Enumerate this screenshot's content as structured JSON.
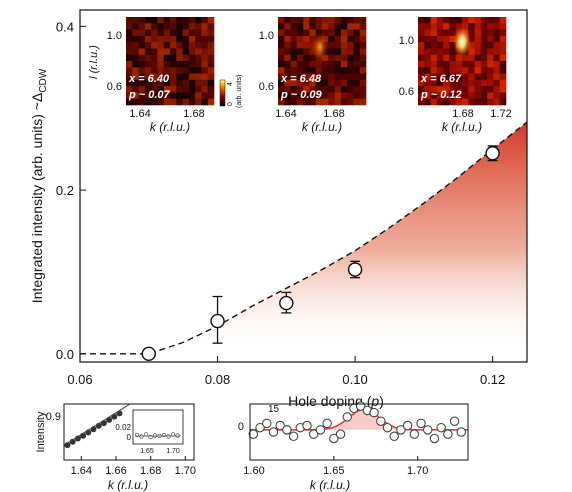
{
  "chart_data": [
    {
      "type": "scatter",
      "xlabel": "Hole doping (",
      "xlabel_var": "p",
      "xlabel_close": ")",
      "ylabel": "Integrated intensity (arb. units) ~Δ",
      "ylabel_sub": "CDW",
      "xlim": [
        0.06,
        0.125
      ],
      "ylim": [
        -0.01,
        0.42
      ],
      "x_ticks": [
        "0.06",
        "0.08",
        "0.10",
        "0.12"
      ],
      "x_tick_values": [
        0.06,
        0.08,
        0.1,
        0.12
      ],
      "y_ticks": [
        "0.0",
        "0.2",
        "0.4"
      ],
      "y_tick_values": [
        0.0,
        0.2,
        0.4
      ],
      "series": [
        {
          "marker": "open-circle",
          "x": [
            0.07,
            0.08,
            0.09,
            0.1,
            0.12
          ],
          "y": [
            0.0,
            0.04,
            0.062,
            0.103,
            0.245
          ],
          "err_low": [
            0.0,
            0.027,
            0.012,
            0.01,
            0.009
          ],
          "err_high": [
            0.0,
            0.03,
            0.013,
            0.01,
            0.009
          ]
        }
      ],
      "fit_curve": {
        "style": "dashed",
        "color": "#111111",
        "x": [
          0.06,
          0.065,
          0.07,
          0.075,
          0.08,
          0.085,
          0.09,
          0.095,
          0.1,
          0.105,
          0.11,
          0.115,
          0.12,
          0.125
        ],
        "y": [
          0.0,
          0.0,
          0.0,
          0.014,
          0.034,
          0.058,
          0.08,
          0.102,
          0.126,
          0.154,
          0.184,
          0.216,
          0.25,
          0.283
        ]
      },
      "fill_color": "#d23a26",
      "grid": false
    },
    {
      "type": "heatmap",
      "ylabel": "l (r.l.u.)",
      "y_ticks": [
        "1.0",
        "0.6"
      ],
      "xlabel": "k (r.l.u.)",
      "x_ticks": [
        "1.64",
        "1.68"
      ],
      "annotation_x": "x = 6.40",
      "annotation_p": "p ~ 0.07",
      "colorbar_label": "(arb. units)",
      "colorbar_ticks": [
        "0",
        "4"
      ]
    },
    {
      "type": "heatmap",
      "y_ticks": [
        "1.0",
        "0.6"
      ],
      "xlabel": "k (r.l.u.)",
      "x_ticks": [
        "1.64",
        "1.68"
      ],
      "annotation_x": "x = 6.48",
      "annotation_p": "p ~ 0.09"
    },
    {
      "type": "heatmap",
      "y_ticks": [
        "1.0",
        "0.6"
      ],
      "xlabel": "k (r.l.u.)",
      "x_ticks": [
        "1.68",
        "1.72"
      ],
      "annotation_x": "x = 6.67",
      "annotation_p": "p ~ 0.12"
    },
    {
      "type": "scatter",
      "ylabel": "Intensity",
      "y_ticks": [
        "0.9"
      ],
      "xlabel": "k (r.l.u.)",
      "x_ticks": [
        "1.64",
        "1.66",
        "1.68",
        "1.70"
      ],
      "x_tick_values": [
        1.64,
        1.66,
        1.68,
        1.7
      ],
      "xlim": [
        1.63,
        1.705
      ],
      "ylim": [
        0.82,
        0.94
      ],
      "series": [
        {
          "marker": "filled-circle",
          "x": [
            1.632,
            1.635,
            1.638,
            1.641,
            1.644,
            1.647,
            1.65,
            1.653,
            1.656,
            1.659,
            1.662
          ],
          "y": [
            0.852,
            0.859,
            0.866,
            0.872,
            0.879,
            0.886,
            0.893,
            0.899,
            0.906,
            0.913,
            0.92
          ]
        }
      ],
      "inset": {
        "y_ticks": [
          "0.02",
          "0"
        ],
        "x_ticks": [
          "1.65",
          "1.70"
        ],
        "points_y": [
          0.002,
          -0.001,
          0.003,
          -0.002,
          0.001,
          0.0,
          0.002,
          -0.001,
          0.003,
          0.001
        ]
      }
    },
    {
      "type": "scatter",
      "xlabel": "k (r.l.u.)",
      "x_ticks": [
        "1.60",
        "1.65",
        "1.70"
      ],
      "x_tick_values": [
        1.6,
        1.65,
        1.7
      ],
      "y_ticks": [
        "0"
      ],
      "annotation": "15",
      "xlim": [
        1.6,
        1.73
      ],
      "ylim": [
        -14,
        12
      ],
      "series": [
        {
          "marker": "open-circle",
          "x": [
            1.602,
            1.606,
            1.61,
            1.614,
            1.618,
            1.622,
            1.626,
            1.63,
            1.634,
            1.638,
            1.642,
            1.646,
            1.65,
            1.654,
            1.658,
            1.662,
            1.666,
            1.67,
            1.674,
            1.678,
            1.682,
            1.686,
            1.69,
            1.694,
            1.698,
            1.702,
            1.706,
            1.71,
            1.714,
            1.718,
            1.722,
            1.726
          ],
          "y": [
            -2,
            1,
            3,
            -1,
            2,
            0,
            -3,
            1,
            2,
            -2,
            0,
            3,
            -4,
            -2,
            6,
            10,
            11,
            9,
            8,
            4,
            1,
            -3,
            0,
            2,
            -2,
            3,
            0,
            -4,
            1,
            -2,
            4,
            -1
          ]
        }
      ],
      "fit_color": "#e04040",
      "fit_baseline": 0,
      "fit_peak_center": 1.668,
      "fit_peak_height": 9.5,
      "fit_peak_width": 0.009
    }
  ]
}
